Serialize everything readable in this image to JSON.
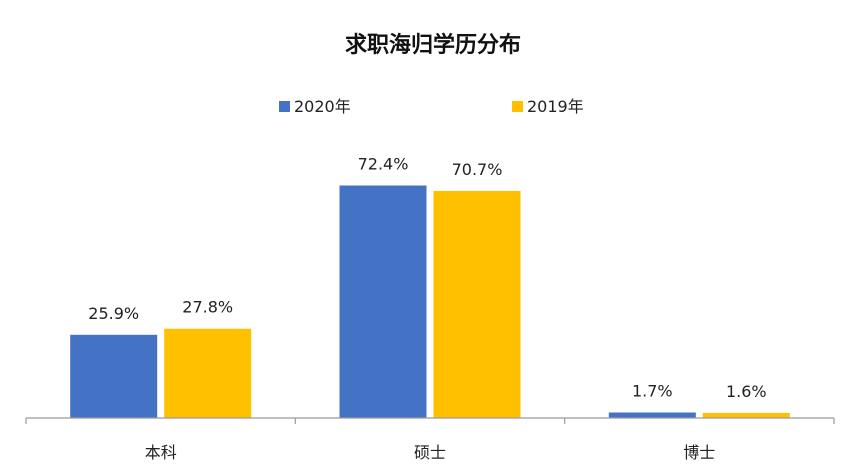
{
  "chart_data": {
    "type": "bar",
    "title": "求职海归学历分布",
    "categories": [
      "本科",
      "硕士",
      "博士"
    ],
    "series": [
      {
        "name": "2020年",
        "values": [
          25.9,
          72.4,
          1.7
        ],
        "labels": [
          "25.9%",
          "72.4%",
          "1.7%"
        ],
        "color": "#4472C4"
      },
      {
        "name": "2019年",
        "values": [
          27.8,
          70.7,
          1.6
        ],
        "labels": [
          "27.8%",
          "70.7%",
          "1.6%"
        ],
        "color": "#FFC000"
      }
    ],
    "xlabel": "",
    "ylabel": "",
    "ylim": [
      0,
      85
    ],
    "grid": false,
    "legend_position": "top"
  }
}
